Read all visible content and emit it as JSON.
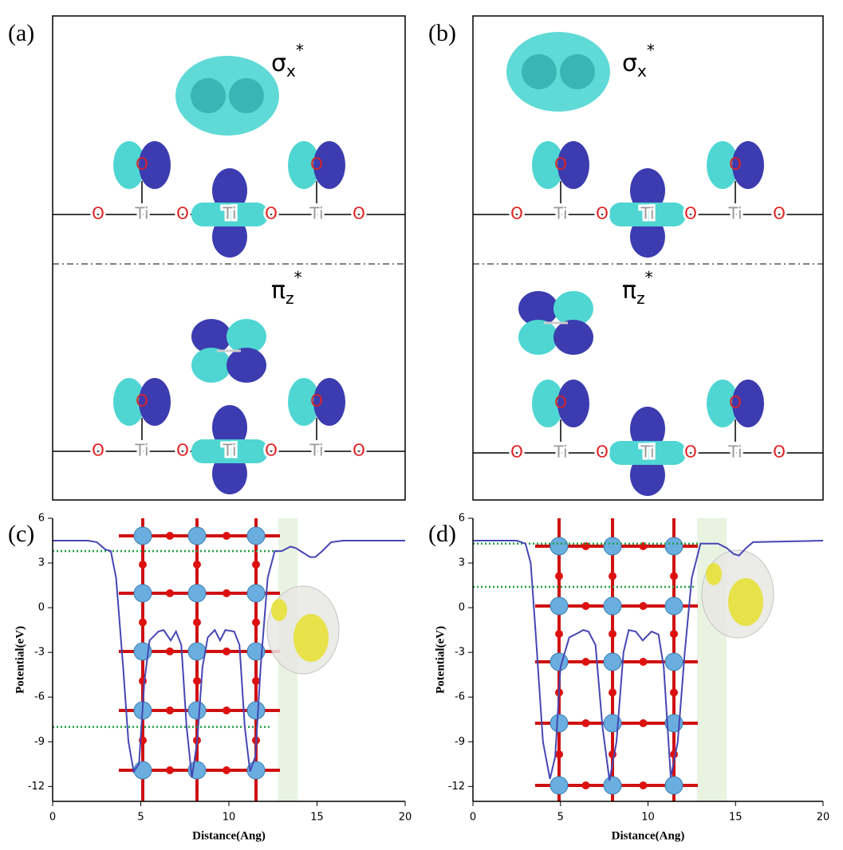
{
  "diagrams": [
    {
      "label": "(a)",
      "sections": [
        {
          "orbital": {
            "symbol": "σ",
            "sub": "x",
            "sup": "*"
          },
          "chain": [
            "O",
            "Ti",
            "O",
            "Ti",
            "O",
            "Ti",
            "O"
          ],
          "apical": [
            "O",
            "O"
          ]
        },
        {
          "orbital": {
            "symbol": "π",
            "sub": "z",
            "sup": "*"
          },
          "chain": [
            "O",
            "Ti",
            "O",
            "Ti",
            "O",
            "Ti",
            "O"
          ],
          "apical": [
            "O",
            "O"
          ]
        }
      ]
    },
    {
      "label": "(b)",
      "sections": [
        {
          "orbital": {
            "symbol": "σ",
            "sub": "x",
            "sup": "*"
          },
          "chain": [
            "O",
            "Ti",
            "O",
            "Ti",
            "O",
            "Ti",
            "O"
          ],
          "apical": [
            "O",
            "O"
          ]
        },
        {
          "orbital": {
            "symbol": "π",
            "sub": "z",
            "sup": "*"
          },
          "chain": [
            "O",
            "Ti",
            "O",
            "Ti",
            "O",
            "Ti",
            "O"
          ],
          "apical": [
            "O",
            "O"
          ]
        }
      ]
    }
  ],
  "chart_data": [
    {
      "type": "line",
      "label": "(c)",
      "xlabel": "Distance(Ang)",
      "ylabel": "Potential(eV)",
      "color": "#4646b4",
      "xlim": [
        0,
        20
      ],
      "ylim": [
        -13,
        6
      ],
      "xticks": [
        0,
        5,
        10,
        15,
        20
      ],
      "yticks": [
        6,
        3,
        0,
        -3,
        -6,
        -9,
        -12
      ],
      "x": [
        0,
        2,
        2.5,
        3,
        3.3,
        3.6,
        4,
        4.3,
        4.6,
        4.9,
        5.2,
        5.5,
        6,
        6.3,
        6.7,
        7,
        7.3,
        7.6,
        7.9,
        8.2,
        8.5,
        8.8,
        9.2,
        9.5,
        9.8,
        10.3,
        10.6,
        10.9,
        11.2,
        11.5,
        11.8,
        12.2,
        12.6,
        13,
        13.5,
        13.8,
        14.2,
        14.6,
        14.9,
        15.3,
        15.8,
        16.5,
        20
      ],
      "values": [
        4.5,
        4.5,
        4.4,
        3.9,
        3.8,
        2,
        -4,
        -9,
        -11,
        -10.5,
        -5,
        -2.2,
        -1.6,
        -1.5,
        -2.2,
        -1.6,
        -2.5,
        -8,
        -11.4,
        -9,
        -4,
        -2,
        -1.5,
        -2.2,
        -1.5,
        -1.6,
        -2.5,
        -8,
        -11,
        -10,
        -4,
        2,
        3.8,
        3.8,
        4.1,
        4,
        3.7,
        3.4,
        3.4,
        3.8,
        4.4,
        4.5,
        4.5
      ],
      "hlines": [
        {
          "y": 3.8,
          "x": [
            0,
            12.8
          ]
        },
        {
          "y": -8,
          "x": [
            0,
            12.3
          ]
        }
      ],
      "hline_color": "#1fa040",
      "span": [
        12.8,
        13.9
      ],
      "span_color": "#e8f3e2"
    },
    {
      "type": "line",
      "label": "(d)",
      "xlabel": "Distance(Ang)",
      "ylabel": "Potential(eV)",
      "color": "#4646b4",
      "xlim": [
        0,
        20
      ],
      "ylim": [
        -13,
        6
      ],
      "xticks": [
        0,
        5,
        10,
        15,
        20
      ],
      "yticks": [
        6,
        3,
        0,
        -3,
        -6,
        -9,
        -12
      ],
      "x": [
        0,
        2.5,
        3,
        3.3,
        3.6,
        4,
        4.4,
        4.7,
        5,
        5.5,
        6,
        6.3,
        6.6,
        7,
        7.4,
        7.8,
        8.2,
        8.6,
        8.9,
        9.3,
        9.7,
        10.2,
        10.6,
        10.9,
        11.3,
        11.7,
        12.1,
        12.5,
        13,
        13.5,
        14,
        14.5,
        14.9,
        15.2,
        15.6,
        16,
        20
      ],
      "values": [
        4.5,
        4.5,
        4.3,
        3,
        -2,
        -9,
        -11.5,
        -10,
        -4,
        -2,
        -1.7,
        -1.5,
        -1.6,
        -2.5,
        -8,
        -11.6,
        -9,
        -3,
        -1.5,
        -1.6,
        -2.2,
        -1.6,
        -1.8,
        -4,
        -11.4,
        -9,
        -3,
        2,
        4.3,
        4.3,
        4.3,
        4,
        3.6,
        3.5,
        4,
        4.4,
        4.5
      ],
      "hlines": [
        {
          "y": 4.3,
          "x": [
            0,
            13
          ]
        },
        {
          "y": 1.4,
          "x": [
            0,
            12.7
          ]
        }
      ],
      "hline_color": "#1fa040",
      "span": [
        12.8,
        14.5
      ],
      "span_color": "#e8f3e2"
    }
  ]
}
